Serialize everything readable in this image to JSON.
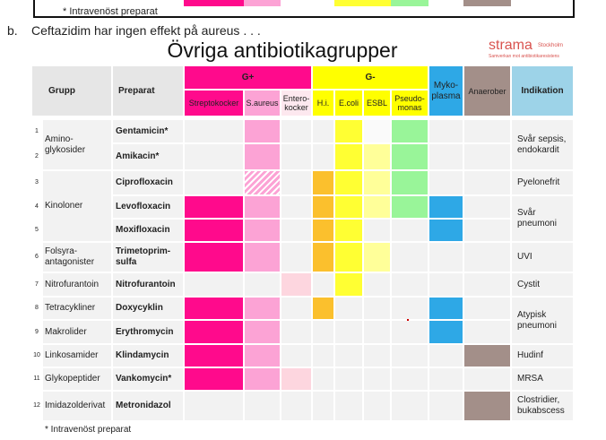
{
  "header": {
    "footnote_top": "* Intravenöst preparat",
    "label": "b.",
    "text": "Ceftazidim har ingen effekt på aureus . . ."
  },
  "slide": {
    "title": "Övriga antibiotikagrupper",
    "logo": "strama",
    "logo_sub": "Stockholm",
    "logo_tagline": "Samverkan mot antibiotikaresistens"
  },
  "table": {
    "head": {
      "group": "Grupp",
      "drug": "Preparat",
      "gpos": "G+",
      "gneg": "G-",
      "myco": "Myko-\nplasma",
      "anaerobes": "Anaerober",
      "indication": "Indikation"
    },
    "subheads": [
      "Streptokocker",
      "S.aureus",
      "Entero-\nkocker",
      "H.i.",
      "E.coli",
      "ESBL",
      "Pseudo-\nmonas"
    ],
    "rows": [
      {
        "num": "1",
        "drug": "Gentamicin*"
      },
      {
        "num": "2",
        "drug": "Amikacin*"
      },
      {
        "num": "3",
        "drug": "Ciprofloxacin"
      },
      {
        "num": "4",
        "drug": "Levofloxacin"
      },
      {
        "num": "5",
        "drug": "Moxifloxacin"
      },
      {
        "num": "6",
        "drug": "Trimetoprim-\nsulfa"
      },
      {
        "num": "7",
        "drug": "Nitrofurantoin"
      },
      {
        "num": "8",
        "drug": "Doxycyklin"
      },
      {
        "num": "9",
        "drug": "Erythromycin"
      },
      {
        "num": "10",
        "drug": "Klindamycin"
      },
      {
        "num": "11",
        "drug": "Vankomycin*"
      },
      {
        "num": "12",
        "drug": "Metronidazol"
      }
    ],
    "groups": [
      "Amino-\nglykosider",
      "Kinoloner",
      "Folsyra-\nantagonister",
      "Nitrofurantoin",
      "Tetracykliner",
      "Makrolider",
      "Linkosamider",
      "Glykopeptider",
      "Imidazolderivat"
    ],
    "indications": [
      "Svår sepsis,\nendokardit",
      "Pyelonefrit",
      "Svår\npneumoni",
      "UVI",
      "Cystit",
      "Atypisk\npneumoni",
      "Hudinf",
      "MRSA",
      "Clostridier,\nbukabscess"
    ],
    "footnote": "* Intravenöst preparat"
  }
}
